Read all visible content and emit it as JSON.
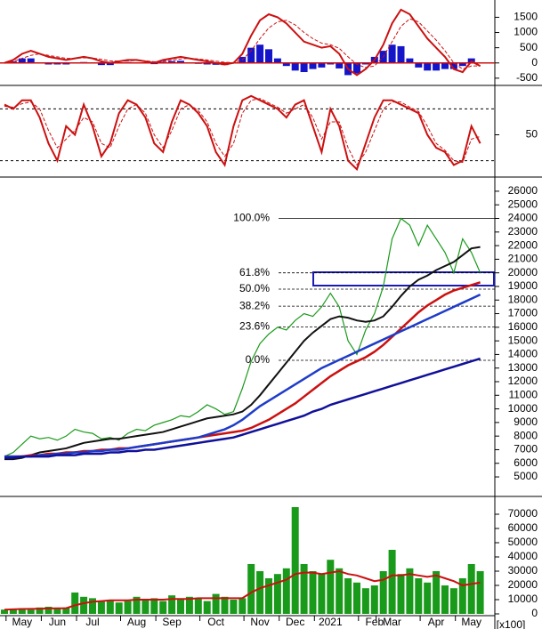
{
  "chart_data": [
    {
      "type": "macd",
      "ylim": [
        -650,
        1980
      ],
      "yticks": [
        1500,
        1000,
        500,
        0,
        -500
      ],
      "macd": [
        0,
        100,
        300,
        400,
        300,
        200,
        150,
        100,
        150,
        200,
        150,
        50,
        0,
        50,
        100,
        100,
        50,
        0,
        100,
        150,
        200,
        150,
        100,
        50,
        0,
        -50,
        0,
        300,
        900,
        1400,
        1600,
        1500,
        1300,
        1000,
        700,
        600,
        500,
        550,
        300,
        -200,
        -400,
        -200,
        100,
        600,
        1300,
        1750,
        1600,
        1200,
        800,
        500,
        200,
        -200,
        -300,
        50,
        -100
      ],
      "signal": [
        0,
        50,
        150,
        250,
        300,
        250,
        200,
        150,
        150,
        170,
        160,
        120,
        70,
        60,
        70,
        80,
        70,
        40,
        60,
        90,
        130,
        150,
        130,
        100,
        60,
        20,
        10,
        100,
        400,
        800,
        1150,
        1350,
        1400,
        1250,
        1000,
        800,
        650,
        600,
        480,
        200,
        -50,
        -150,
        -100,
        200,
        700,
        1200,
        1450,
        1350,
        1050,
        750,
        400,
        0,
        -200,
        -100,
        -100
      ],
      "histogram": [
        0,
        50,
        150,
        150,
        0,
        -50,
        -50,
        -50,
        0,
        30,
        -10,
        -70,
        -70,
        -10,
        30,
        20,
        -20,
        -40,
        40,
        60,
        70,
        0,
        -30,
        -50,
        -60,
        -70,
        -10,
        200,
        500,
        600,
        450,
        150,
        -100,
        -250,
        -300,
        -200,
        -150,
        -50,
        -180,
        -400,
        -350,
        -50,
        200,
        400,
        600,
        550,
        150,
        -150,
        -250,
        -250,
        -200,
        -200,
        -100,
        150,
        0
      ],
      "line_color": "#cc1010",
      "histogram_color": "#1414c8"
    },
    {
      "type": "oscillator",
      "ylim": [
        0,
        100
      ],
      "yticks": [
        50
      ],
      "levels": [
        80,
        20
      ],
      "k": [
        85,
        80,
        90,
        90,
        70,
        40,
        20,
        60,
        50,
        85,
        60,
        25,
        40,
        75,
        90,
        85,
        70,
        40,
        30,
        65,
        90,
        85,
        75,
        60,
        30,
        15,
        60,
        90,
        95,
        90,
        85,
        80,
        70,
        85,
        90,
        60,
        30,
        80,
        60,
        20,
        10,
        40,
        70,
        90,
        90,
        85,
        80,
        75,
        50,
        35,
        30,
        15,
        20,
        60,
        40
      ],
      "d": [
        83,
        82,
        86,
        88,
        80,
        55,
        35,
        45,
        55,
        70,
        65,
        40,
        35,
        60,
        80,
        85,
        75,
        50,
        35,
        55,
        80,
        85,
        78,
        65,
        40,
        25,
        40,
        75,
        90,
        92,
        87,
        82,
        75,
        80,
        85,
        70,
        45,
        65,
        65,
        35,
        15,
        30,
        55,
        80,
        88,
        88,
        82,
        77,
        60,
        40,
        32,
        20,
        18,
        45,
        48
      ],
      "color": "#cc1010"
    },
    {
      "type": "line",
      "ylim": [
        3760,
        26780
      ],
      "yticks": [
        26000,
        25000,
        24000,
        23000,
        22000,
        21000,
        20000,
        19000,
        18000,
        17000,
        16000,
        15000,
        14000,
        13000,
        12000,
        11000,
        10000,
        9000,
        8000,
        7000,
        6000,
        5000
      ],
      "fib_levels": [
        {
          "value": 24000,
          "label": "100.0%"
        },
        {
          "value": 20000,
          "label": "61.8%"
        },
        {
          "value": 18800,
          "label": "50.0%"
        },
        {
          "value": 17550,
          "label": "38.2%"
        },
        {
          "value": 16030,
          "label": "23.6%"
        },
        {
          "value": 13570,
          "label": "0.0%"
        }
      ],
      "series": [
        {
          "color": "#1a9a1a",
          "width": 1.2,
          "values": [
            6500,
            6800,
            7400,
            8000,
            7800,
            7900,
            7700,
            8000,
            8500,
            8300,
            8200,
            7800,
            7900,
            7700,
            8200,
            8500,
            8400,
            8800,
            9000,
            9200,
            9500,
            9400,
            9800,
            10300,
            10000,
            9600,
            9800,
            11500,
            13500,
            14800,
            15500,
            16000,
            15800,
            16500,
            17000,
            16800,
            17500,
            18500,
            17500,
            15000,
            14000,
            15800,
            17000,
            19000,
            22500,
            24000,
            23500,
            22000,
            23500,
            22500,
            21500,
            20000,
            22500,
            21500,
            20000
          ]
        },
        {
          "color": "#111111",
          "width": 2,
          "values": [
            6300,
            6300,
            6400,
            6600,
            6800,
            6900,
            7000,
            7100,
            7300,
            7500,
            7600,
            7700,
            7800,
            7800,
            7900,
            8000,
            8100,
            8200,
            8300,
            8500,
            8700,
            8900,
            9100,
            9300,
            9400,
            9500,
            9600,
            9800,
            10300,
            11000,
            11800,
            12600,
            13400,
            14200,
            15000,
            15600,
            16100,
            16600,
            16800,
            16700,
            16500,
            16400,
            16500,
            16800,
            17500,
            18300,
            19000,
            19500,
            19800,
            20200,
            20500,
            20800,
            21300,
            21800,
            21900
          ]
        },
        {
          "color": "#cc1010",
          "width": 2.5,
          "values": [
            6500,
            6500,
            6500,
            6600,
            6600,
            6700,
            6700,
            6800,
            6800,
            6900,
            6900,
            7000,
            7000,
            7100,
            7100,
            7200,
            7300,
            7400,
            7500,
            7600,
            7700,
            7800,
            7900,
            8000,
            8100,
            8200,
            8300,
            8400,
            8600,
            8900,
            9200,
            9600,
            10000,
            10400,
            10900,
            11400,
            11900,
            12400,
            12800,
            13200,
            13500,
            13800,
            14200,
            14700,
            15300,
            15900,
            16500,
            17100,
            17600,
            18000,
            18400,
            18700,
            18900,
            19100,
            19300
          ]
        },
        {
          "color": "#1e3cc8",
          "width": 2.5,
          "values": [
            6500,
            6500,
            6500,
            6500,
            6600,
            6600,
            6700,
            6700,
            6800,
            6800,
            6900,
            6900,
            7000,
            7000,
            7100,
            7200,
            7300,
            7400,
            7500,
            7600,
            7700,
            7800,
            7900,
            8100,
            8300,
            8500,
            8800,
            9200,
            9700,
            10200,
            10600,
            11000,
            11400,
            11800,
            12200,
            12600,
            13000,
            13300,
            13600,
            13900,
            14200,
            14500,
            14800,
            15100,
            15400,
            15700,
            16000,
            16300,
            16600,
            16900,
            17200,
            17500,
            17800,
            18100,
            18400
          ]
        },
        {
          "color": "#10109a",
          "width": 2.5,
          "values": [
            6400,
            6400,
            6500,
            6500,
            6500,
            6500,
            6600,
            6600,
            6600,
            6700,
            6700,
            6700,
            6800,
            6800,
            6900,
            6900,
            7000,
            7000,
            7100,
            7200,
            7300,
            7400,
            7500,
            7600,
            7700,
            7800,
            7900,
            8100,
            8300,
            8500,
            8700,
            8900,
            9100,
            9300,
            9500,
            9800,
            10000,
            10300,
            10500,
            10700,
            10900,
            11100,
            11300,
            11500,
            11700,
            11900,
            12100,
            12300,
            12500,
            12700,
            12900,
            13100,
            13300,
            13500,
            13700
          ]
        }
      ]
    },
    {
      "type": "bar",
      "ylim": [
        0,
        80000
      ],
      "yticks": [
        70000,
        60000,
        50000,
        40000,
        30000,
        20000,
        10000,
        0
      ],
      "unit": "[x100]",
      "color": "#1a9a1a",
      "ma_color": "#cc1010",
      "values": [
        3000,
        3500,
        4000,
        3000,
        4500,
        5000,
        4000,
        4500,
        15000,
        12000,
        11000,
        9000,
        10000,
        8000,
        9000,
        12000,
        10000,
        11000,
        9000,
        13000,
        10000,
        12000,
        11000,
        9000,
        14000,
        12000,
        10000,
        11000,
        35000,
        30000,
        25000,
        28000,
        32000,
        75000,
        35000,
        30000,
        28000,
        38000,
        32000,
        25000,
        22000,
        18000,
        20000,
        30000,
        45000,
        28000,
        32000,
        25000,
        22000,
        30000,
        20000,
        18000,
        25000,
        35000,
        30000
      ],
      "ma": [
        3000,
        3200,
        3400,
        3500,
        3600,
        3800,
        3900,
        4000,
        6000,
        7500,
        8500,
        9000,
        9500,
        9500,
        9500,
        10000,
        10000,
        10000,
        10000,
        10500,
        10500,
        10500,
        11000,
        11000,
        11000,
        11000,
        11000,
        11000,
        15000,
        18000,
        20000,
        22000,
        24000,
        28000,
        29000,
        29000,
        28000,
        29000,
        30000,
        28000,
        27000,
        25000,
        23000,
        24000,
        27000,
        27000,
        28000,
        27000,
        26000,
        27000,
        25000,
        23000,
        20000,
        21000,
        22000
      ],
      "categories": [
        null,
        null,
        "May",
        null,
        null,
        null,
        "Jun",
        null,
        null,
        null,
        "Jul",
        null,
        null,
        null,
        null,
        "Aug",
        null,
        null,
        null,
        "Sep",
        null,
        null,
        null,
        null,
        "Oct",
        null,
        null,
        null,
        null,
        "Nov",
        null,
        null,
        null,
        "Dec",
        null,
        null,
        null,
        "2021",
        null,
        null,
        null,
        null,
        "Feb",
        null,
        "Mar",
        null,
        null,
        null,
        null,
        "Apr",
        null,
        null,
        null,
        "May",
        null
      ]
    }
  ]
}
